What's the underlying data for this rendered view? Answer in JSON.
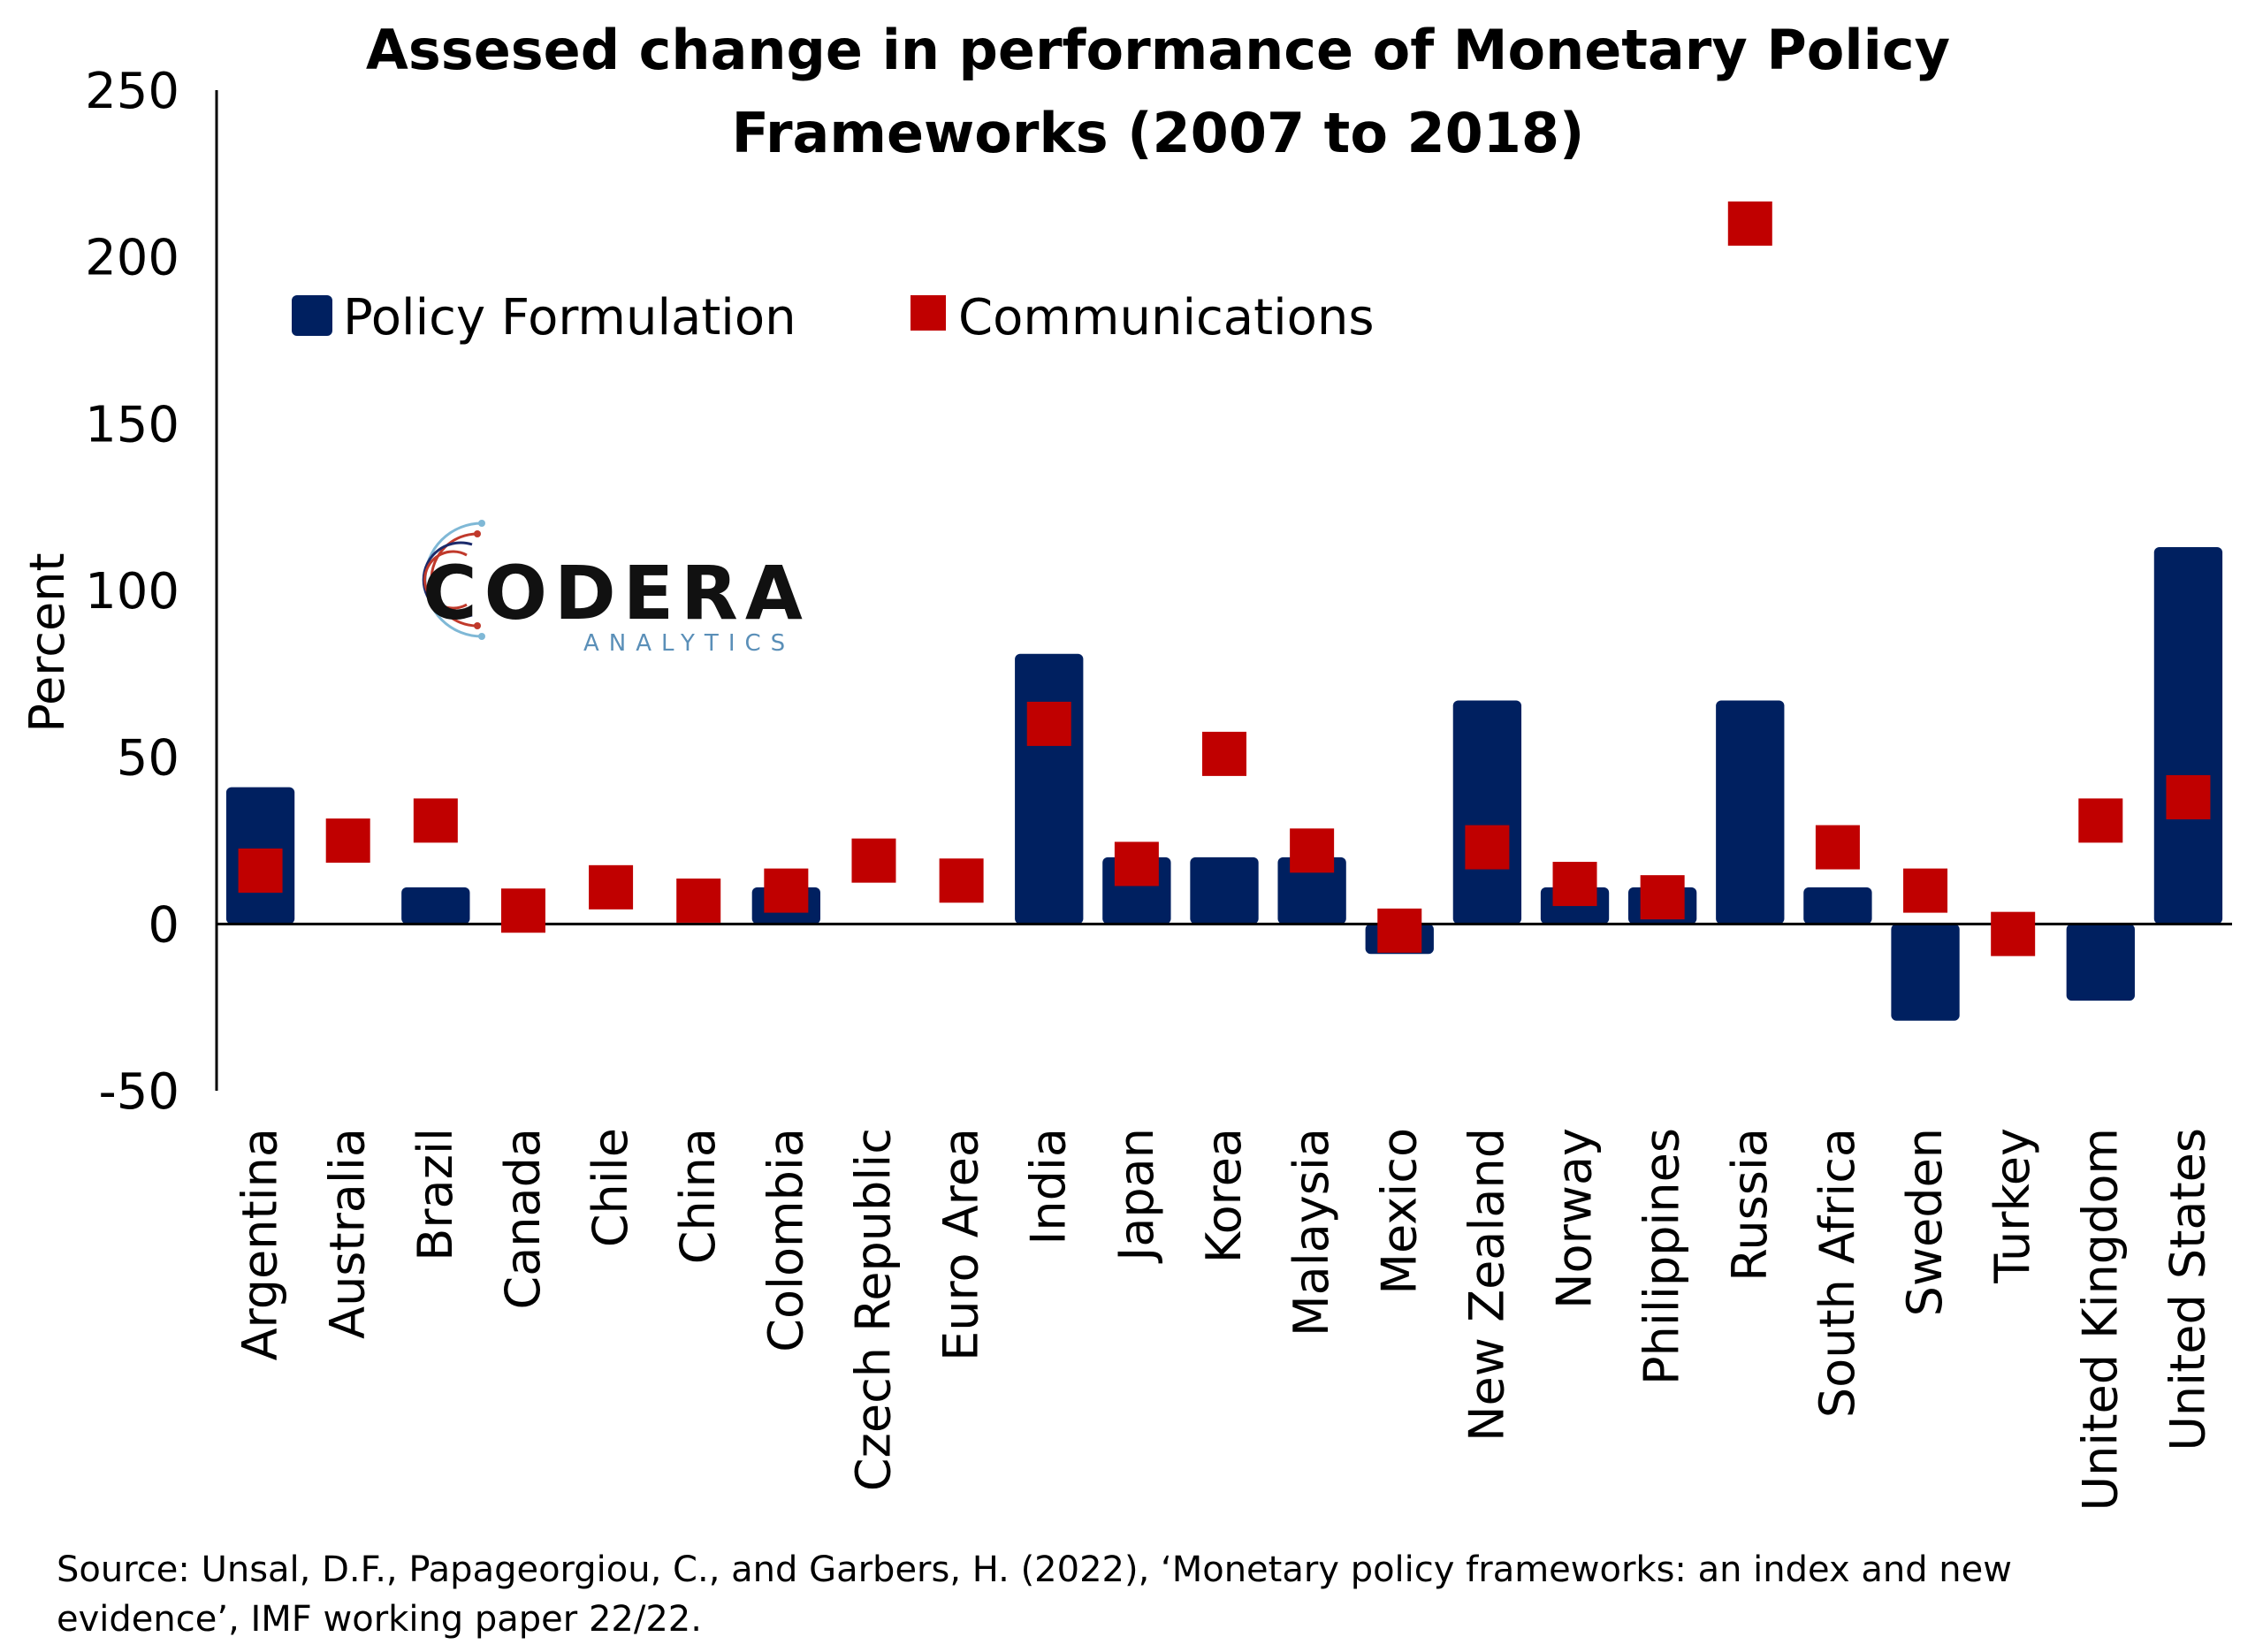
{
  "chart_data": {
    "type": "bar",
    "title": "Assesed change in performance of Monetary Policy Frameworks (2007 to 2018)",
    "title_lines": [
      "Assesed change in performance of Monetary Policy",
      "Frameworks (2007 to 2018)"
    ],
    "ylabel": "Percent",
    "xlabel": "",
    "ylim": [
      -50,
      250
    ],
    "yticks": [
      250,
      200,
      150,
      100,
      50,
      0,
      -50
    ],
    "legend_position": "top-left",
    "categories": [
      "Argentina",
      "Australia",
      "Brazil",
      "Canada",
      "Chile",
      "China",
      "Colombia",
      "Czech Republic",
      "Euro Area",
      "India",
      "Japan",
      "Korea",
      "Malaysia",
      "Mexico",
      "New Zealand",
      "Norway",
      "Philippines",
      "Russia",
      "South Africa",
      "Sweden",
      "Turkey",
      "United Kingdom",
      "United States"
    ],
    "series": [
      {
        "name": "Policy Formulation",
        "type": "bar",
        "color": "#002060",
        "values": [
          41,
          0,
          11,
          0,
          0,
          0,
          11,
          0,
          0,
          81,
          20,
          20,
          20,
          -9,
          67,
          11,
          11,
          67,
          11,
          -29,
          0,
          -23,
          113
        ]
      },
      {
        "name": "Communications",
        "type": "marker",
        "color": "#C00000",
        "values": [
          16,
          25,
          31,
          4,
          11,
          7,
          10,
          19,
          13,
          60,
          18,
          51,
          22,
          -2,
          23,
          12,
          8,
          210,
          23,
          10,
          -3,
          31,
          38
        ]
      }
    ]
  },
  "logo": {
    "name": "CODERA",
    "tagline": "ANALYTICS",
    "colors": [
      "#1b2a6b",
      "#c0392b",
      "#7fb8d6"
    ]
  },
  "source": "Source: Unsal, D.F., Papageorgiou, C., and Garbers, H. (2022), ‘Monetary policy frameworks: an index and new evidence’, IMF working paper 22/22."
}
